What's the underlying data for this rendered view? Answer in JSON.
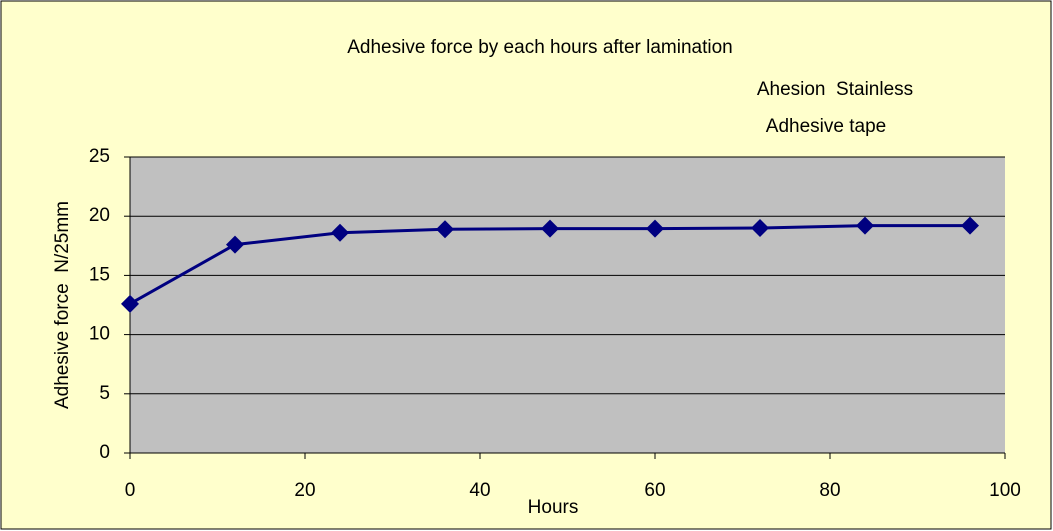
{
  "chart_data": {
    "type": "line",
    "title": "Adhesive force by each hours after lamination",
    "annotations": [
      "Ahesion  Stainless",
      "Adhesive tape"
    ],
    "x_label": "Hours",
    "y_label": "Adhesive force  N/25mm",
    "x": [
      0,
      12,
      24,
      36,
      48,
      60,
      72,
      84,
      96
    ],
    "values": [
      12.6,
      17.6,
      18.6,
      18.9,
      18.95,
      18.95,
      19.0,
      19.2,
      19.2
    ],
    "color": "#000080",
    "xlim": [
      0,
      100
    ],
    "xticks": [
      0,
      20,
      40,
      60,
      80,
      100
    ],
    "ylim": [
      0,
      25
    ],
    "yticks": [
      0,
      5,
      10,
      15,
      20,
      25
    ],
    "grid": true
  }
}
